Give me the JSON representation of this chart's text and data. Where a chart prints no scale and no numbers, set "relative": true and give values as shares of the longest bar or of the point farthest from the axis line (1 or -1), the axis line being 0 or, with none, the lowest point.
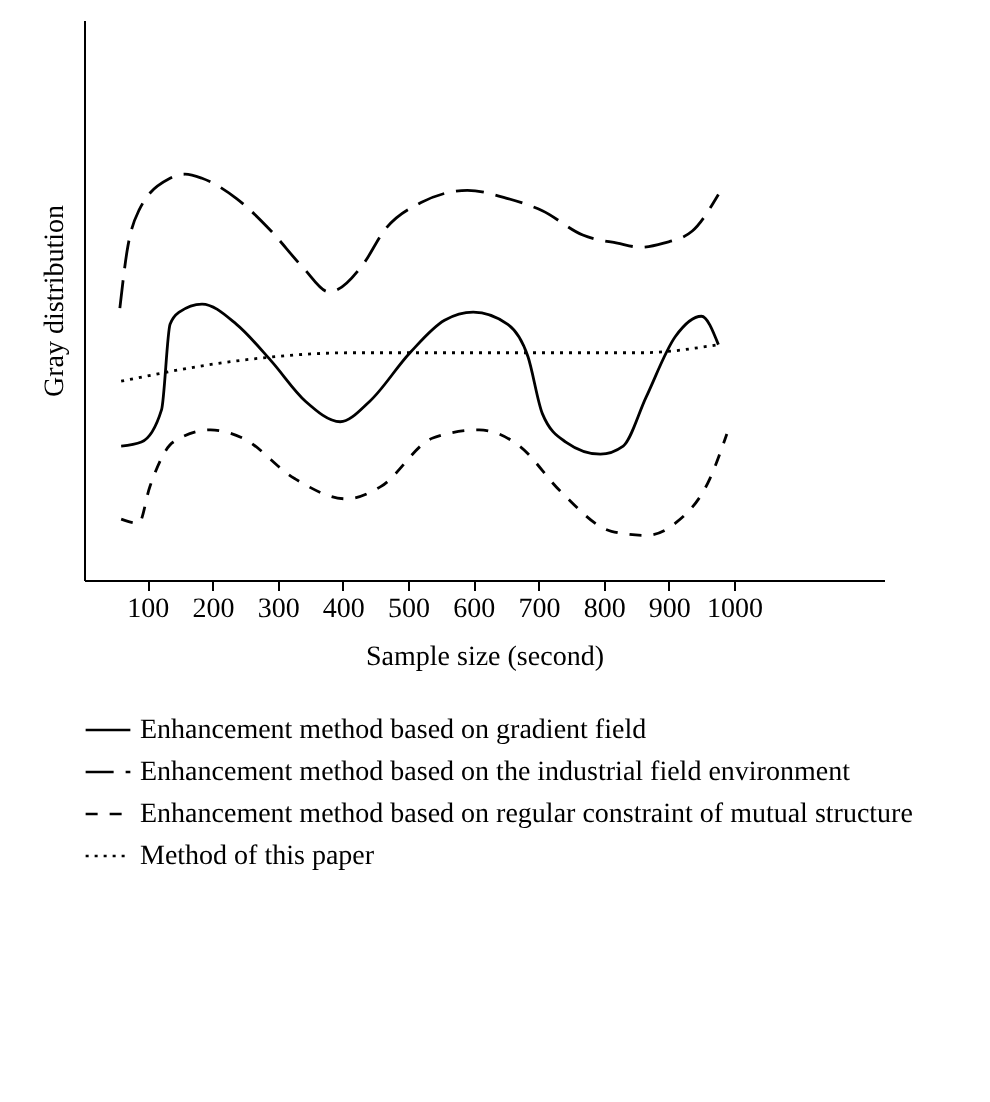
{
  "chart_data": {
    "type": "line",
    "relative": true,
    "xlabel": "Sample size (second)",
    "ylabel": "Gray distribution",
    "xlim": [
      3,
      1230
    ],
    "xticks": [
      100,
      200,
      300,
      400,
      500,
      600,
      700,
      800,
      900,
      1000
    ],
    "legend": "bottom",
    "series": [
      {
        "name": "Enhancement method based on gradient field",
        "color": "#000000",
        "line_style": "solid",
        "x": [
          60,
          91,
          122,
          135,
          149,
          184,
          237,
          290,
          343,
          396,
          441,
          503,
          556,
          600,
          653,
          684,
          706,
          742,
          795,
          830,
          865,
          910,
          950,
          976
        ],
        "values": [
          0.33,
          0.34,
          0.42,
          0.63,
          0.66,
          0.68,
          0.63,
          0.54,
          0.44,
          0.39,
          0.44,
          0.56,
          0.64,
          0.66,
          0.63,
          0.55,
          0.41,
          0.34,
          0.31,
          0.33,
          0.45,
          0.6,
          0.65,
          0.58
        ]
      },
      {
        "name": "Enhancement method based on the industrial field environment",
        "color": "#000000",
        "line_style": "longdash",
        "x": [
          58,
          69,
          87,
          135,
          158,
          184,
          237,
          290,
          339,
          379,
          432,
          463,
          520,
          591,
          653,
          706,
          768,
          821,
          857,
          892,
          936,
          976
        ],
        "values": [
          0.67,
          0.81,
          0.91,
          0.99,
          1,
          0.99,
          0.94,
          0.86,
          0.77,
          0.71,
          0.78,
          0.86,
          0.93,
          0.96,
          0.94,
          0.91,
          0.85,
          0.83,
          0.82,
          0.83,
          0.86,
          0.95
        ]
      },
      {
        "name": "Enhancement method based on regular constraint of mutual structure",
        "color": "#000000",
        "line_style": "dashed",
        "x": [
          60,
          87,
          104,
          140,
          197,
          246,
          326,
          405,
          458,
          538,
          609,
          671,
          733,
          812,
          865,
          910,
          963,
          989
        ],
        "values": [
          0.15,
          0.14,
          0.23,
          0.34,
          0.37,
          0.35,
          0.25,
          0.2,
          0.23,
          0.35,
          0.37,
          0.33,
          0.22,
          0.12,
          0.11,
          0.14,
          0.25,
          0.36
        ]
      },
      {
        "name": "Method of this paper",
        "color": "#000000",
        "line_style": "dotted",
        "x": [
          60,
          237,
          414,
          591,
          768,
          857,
          976
        ],
        "values": [
          0.49,
          0.54,
          0.56,
          0.56,
          0.56,
          0.56,
          0.58
        ]
      }
    ]
  }
}
